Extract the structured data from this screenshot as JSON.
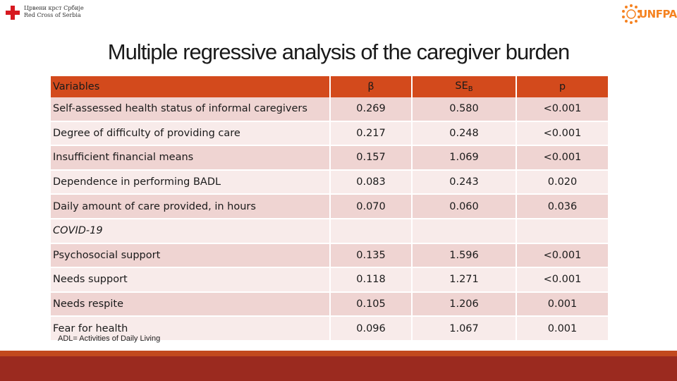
{
  "logos": {
    "red_cross_line1": "Црвени крст Србије",
    "red_cross_line2": "Red Cross of Serbia",
    "unfpa": "UNFPA"
  },
  "title": "Multiple regressive analysis of the caregiver burden",
  "table": {
    "headers": {
      "variables": "Variables",
      "beta": "β",
      "se": "SE",
      "se_sub": "B",
      "p": "p"
    },
    "rows": [
      {
        "variable": "Self-assessed health status of informal caregivers",
        "beta": "0.269",
        "se": "0.580",
        "p": "<0.001"
      },
      {
        "variable": "Degree of difficulty of providing care",
        "beta": "0.217",
        "se": "0.248",
        "p": "<0.001"
      },
      {
        "variable": "Insufficient financial means",
        "beta": "0.157",
        "se": "1.069",
        "p": "<0.001"
      },
      {
        "variable": "Dependence in performing BADL",
        "beta": "0.083",
        "se": "0.243",
        "p": "0.020"
      },
      {
        "variable": "Daily amount of care provided, in hours",
        "beta": "0.070",
        "se": "0.060",
        "p": "0.036"
      },
      {
        "variable": "COVID-19",
        "beta": "",
        "se": "",
        "p": ""
      },
      {
        "variable": "Psychosocial support",
        "beta": "0.135",
        "se": "1.596",
        "p": "<0.001"
      },
      {
        "variable": "Needs support",
        "beta": "0.118",
        "se": "1.271",
        "p": "<0.001"
      },
      {
        "variable": "Needs respite",
        "beta": "0.105",
        "se": "1.206",
        "p": "0.001"
      },
      {
        "variable": "Fear for health",
        "beta": "0.096",
        "se": "1.067",
        "p": "0.001"
      }
    ]
  },
  "footnote": "ADL= Activities of Daily Living",
  "colors": {
    "header": "#d34a1c",
    "row_odd": "#efd4d2",
    "row_even": "#f8ebea",
    "footer_bar": "#9b2a1f",
    "footer_stripe": "#c2491e",
    "unfpa": "#f58220",
    "red_cross": "#d71920"
  }
}
